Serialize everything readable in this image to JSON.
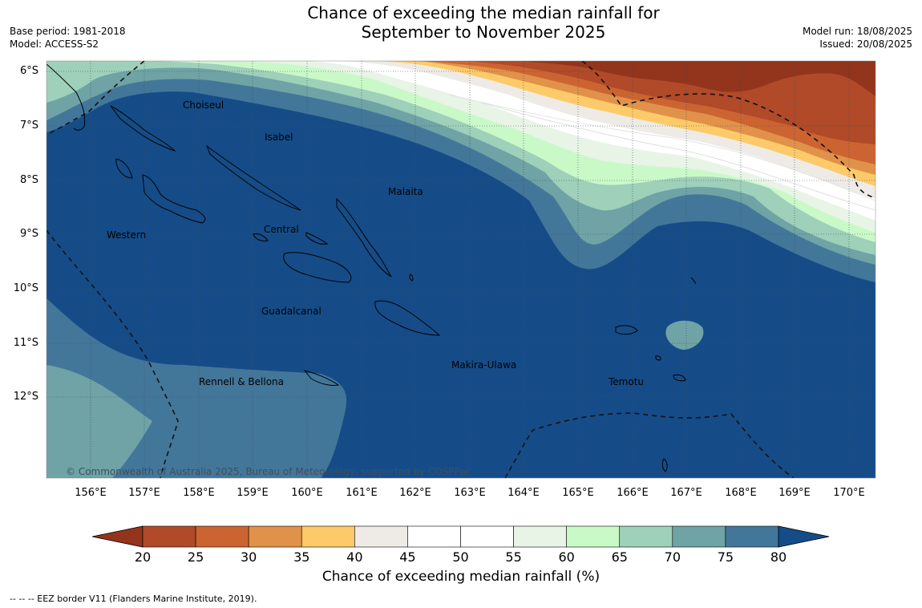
{
  "title_line1": "Chance of exceeding the median rainfall for",
  "title_line2": "September to November 2025",
  "base_period": "Base period: 1981-2018",
  "model": "Model: ACCESS-S2",
  "model_run": "Model run: 18/08/2025",
  "issued": "Issued: 20/08/2025",
  "lat_labels": [
    "6°S",
    "7°S",
    "8°S",
    "9°S",
    "10°S",
    "11°S",
    "12°S"
  ],
  "lon_labels": [
    "156°E",
    "157°E",
    "158°E",
    "159°E",
    "160°E",
    "161°E",
    "162°E",
    "163°E",
    "164°E",
    "165°E",
    "166°E",
    "167°E",
    "168°E",
    "169°E",
    "170°E"
  ],
  "provinces": {
    "choiseul": "Choiseul",
    "isabel": "Isabel",
    "malaita": "Malaita",
    "western": "Western",
    "central": "Central",
    "guadalcanal": "Guadalcanal",
    "rennell_bellona": "Rennell & Bellona",
    "makira_ulawa": "Makira-Ulawa",
    "temotu": "Temotu"
  },
  "copyright": "© Commonwealth of Australia 2025, Bureau of Meteorology, supported by COSPPac",
  "colorbar": {
    "ticks": [
      "20",
      "25",
      "30",
      "35",
      "40",
      "45",
      "50",
      "55",
      "60",
      "65",
      "70",
      "75",
      "80"
    ],
    "colors": [
      "#b04a28",
      "#cc6432",
      "#e0924a",
      "#fdca6a",
      "#eeebe6",
      "#ffffff",
      "#ffffff",
      "#e8f4e6",
      "#caf9c8",
      "#9ed0ba",
      "#6fa3a6",
      "#43779a"
    ],
    "under_color": "#93341c",
    "over_color": "#154c88",
    "title": "Chance of exceeding median rainfall (%)"
  },
  "footnote": "--  --  -- EEZ border V11 (Flanders Marine Institute, 2019)."
}
